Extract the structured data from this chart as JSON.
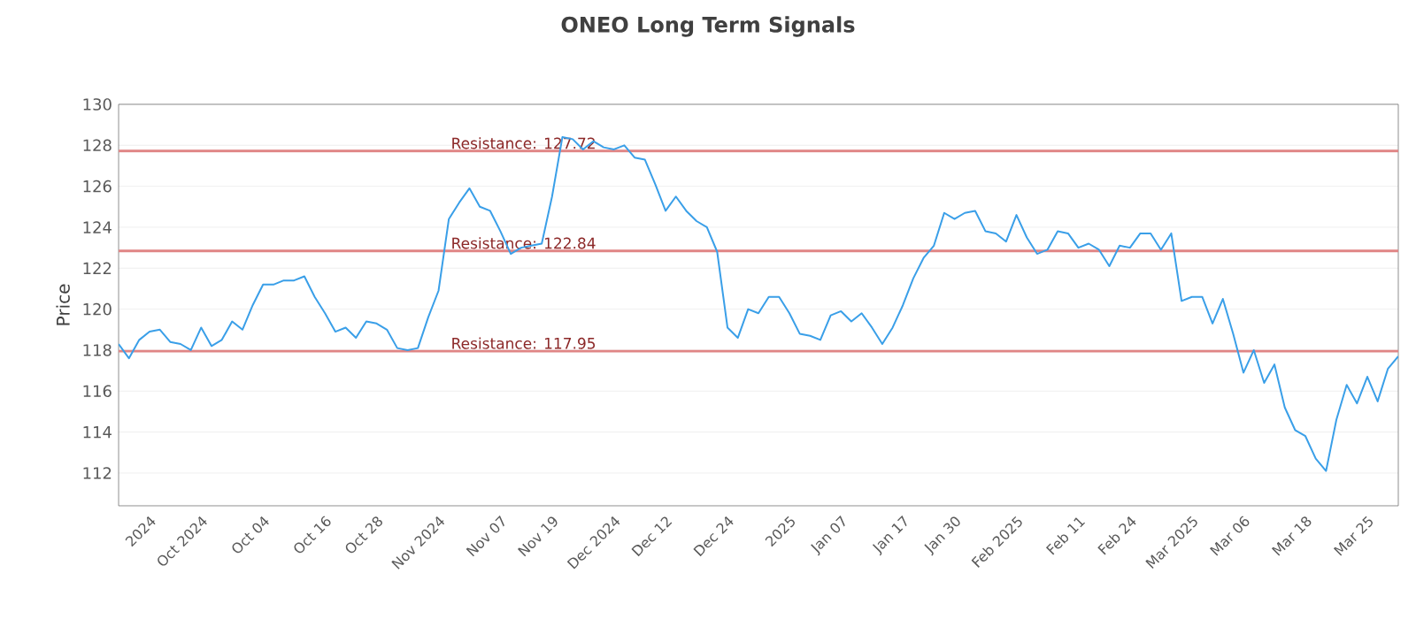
{
  "chart_data": {
    "type": "line",
    "title": "ONEO Long Term Signals",
    "ylabel": "Price",
    "categories": [
      null,
      null,
      null,
      "2024",
      null,
      null,
      null,
      null,
      "Oct 2024",
      null,
      null,
      null,
      null,
      null,
      "Oct 04",
      null,
      null,
      null,
      null,
      null,
      "Oct 16",
      null,
      null,
      null,
      null,
      "Oct 28",
      null,
      null,
      null,
      null,
      null,
      "Nov 2024",
      null,
      null,
      null,
      null,
      null,
      "Nov 07",
      null,
      null,
      null,
      null,
      "Nov 19",
      null,
      null,
      null,
      null,
      null,
      "Dec 2024",
      null,
      null,
      null,
      null,
      "Dec 12",
      null,
      null,
      null,
      null,
      null,
      "Dec 24",
      null,
      null,
      null,
      null,
      null,
      "2025",
      null,
      null,
      null,
      null,
      "Jan 07",
      null,
      null,
      null,
      null,
      null,
      "Jan 17",
      null,
      null,
      null,
      null,
      "Jan 30",
      null,
      null,
      null,
      null,
      null,
      "Feb 2025",
      null,
      null,
      null,
      null,
      null,
      "Feb 11",
      null,
      null,
      null,
      null,
      "Feb 24",
      null,
      null,
      null,
      null,
      null,
      "Mar 2025",
      null,
      null,
      null,
      null,
      "Mar 06",
      null,
      null,
      null,
      null,
      null,
      "Mar 18",
      null,
      null,
      null,
      null,
      null,
      "Mar 25",
      null,
      null,
      null
    ],
    "series": [
      {
        "color": "#3a9fe8",
        "values": [
          118.3,
          117.6,
          118.5,
          118.9,
          119.0,
          118.4,
          118.3,
          118.0,
          119.1,
          118.2,
          118.5,
          119.4,
          119.0,
          120.2,
          121.2,
          121.2,
          121.4,
          121.4,
          121.6,
          120.6,
          119.8,
          118.9,
          119.1,
          118.6,
          119.4,
          119.3,
          119.0,
          118.1,
          118.0,
          118.1,
          119.6,
          120.9,
          124.4,
          125.2,
          125.9,
          125.0,
          124.8,
          123.8,
          122.7,
          123.0,
          123.1,
          123.2,
          125.5,
          128.4,
          128.3,
          127.8,
          128.2,
          127.9,
          127.8,
          128.0,
          127.4,
          127.3,
          126.1,
          124.8,
          125.5,
          124.8,
          124.3,
          124.0,
          122.8,
          119.1,
          118.6,
          120.0,
          119.8,
          120.6,
          120.6,
          119.8,
          118.8,
          118.7,
          118.5,
          119.7,
          119.9,
          119.4,
          119.8,
          119.1,
          118.3,
          119.1,
          120.2,
          121.5,
          122.5,
          123.1,
          124.7,
          124.4,
          124.7,
          124.8,
          123.8,
          123.7,
          123.3,
          124.6,
          123.5,
          122.7,
          122.9,
          123.8,
          123.7,
          123.0,
          123.2,
          122.9,
          122.1,
          123.1,
          123.0,
          123.7,
          123.7,
          122.9,
          123.7,
          120.4,
          120.6,
          120.6,
          119.3,
          120.5,
          118.8,
          116.9,
          118.0,
          116.4,
          117.3,
          115.2,
          114.1,
          113.8,
          112.7,
          112.1,
          114.6,
          116.3,
          115.4,
          116.7,
          115.5,
          117.1,
          117.7
        ]
      }
    ],
    "ylim": [
      110.4,
      130
    ],
    "yticks": [
      112,
      114,
      116,
      118,
      120,
      122,
      124,
      126,
      128,
      130
    ],
    "grid": "y",
    "marker": "none",
    "line_style": "solid",
    "ref_lines": [
      {
        "axis": "y",
        "value": 127.72,
        "label": "Resistance: 127.72",
        "color": "#e08585"
      },
      {
        "axis": "y",
        "value": 122.84,
        "label": "Resistance: 122.84",
        "color": "#e08585"
      },
      {
        "axis": "y",
        "value": 117.95,
        "label": "Resistance: 117.95",
        "color": "#e08585"
      }
    ]
  }
}
